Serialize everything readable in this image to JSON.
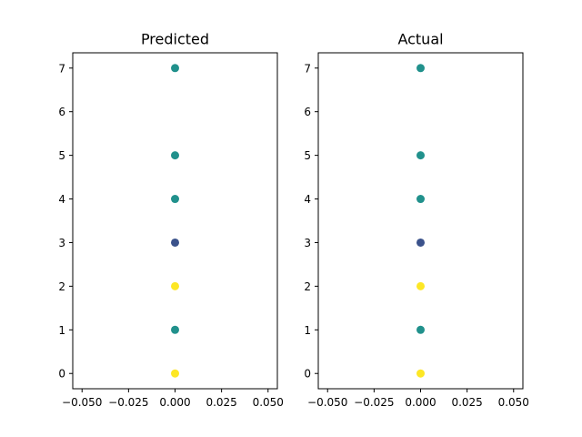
{
  "chart_data": [
    {
      "type": "scatter",
      "title": "Predicted",
      "xlabel": "",
      "ylabel": "",
      "xlim": [
        -0.055,
        0.055
      ],
      "ylim": [
        -0.35,
        7.35
      ],
      "xticks": [
        -0.05,
        -0.025,
        0.0,
        0.025,
        0.05
      ],
      "xtick_labels": [
        "−0.050",
        "−0.025",
        "0.000",
        "0.025",
        "0.050"
      ],
      "yticks": [
        0,
        1,
        2,
        3,
        4,
        5,
        6,
        7
      ],
      "ytick_labels": [
        "0",
        "1",
        "2",
        "3",
        "4",
        "5",
        "6",
        "7"
      ],
      "grid": false,
      "points": [
        {
          "x": 0.0,
          "y": 7,
          "color": "#21918c"
        },
        {
          "x": 0.0,
          "y": 5,
          "color": "#21918c"
        },
        {
          "x": 0.0,
          "y": 4,
          "color": "#21918c"
        },
        {
          "x": 0.0,
          "y": 3,
          "color": "#3b528b"
        },
        {
          "x": 0.0,
          "y": 2,
          "color": "#fde725"
        },
        {
          "x": 0.0,
          "y": 1,
          "color": "#21918c"
        },
        {
          "x": 0.0,
          "y": 0,
          "color": "#fde725"
        }
      ]
    },
    {
      "type": "scatter",
      "title": "Actual",
      "xlabel": "",
      "ylabel": "",
      "xlim": [
        -0.055,
        0.055
      ],
      "ylim": [
        -0.35,
        7.35
      ],
      "xticks": [
        -0.05,
        -0.025,
        0.0,
        0.025,
        0.05
      ],
      "xtick_labels": [
        "−0.050",
        "−0.025",
        "0.000",
        "0.025",
        "0.050"
      ],
      "yticks": [
        0,
        1,
        2,
        3,
        4,
        5,
        6,
        7
      ],
      "ytick_labels": [
        "0",
        "1",
        "2",
        "3",
        "4",
        "5",
        "6",
        "7"
      ],
      "grid": false,
      "points": [
        {
          "x": 0.0,
          "y": 7,
          "color": "#21918c"
        },
        {
          "x": 0.0,
          "y": 5,
          "color": "#21918c"
        },
        {
          "x": 0.0,
          "y": 4,
          "color": "#21918c"
        },
        {
          "x": 0.0,
          "y": 3,
          "color": "#3b528b"
        },
        {
          "x": 0.0,
          "y": 2,
          "color": "#fde725"
        },
        {
          "x": 0.0,
          "y": 1,
          "color": "#21918c"
        },
        {
          "x": 0.0,
          "y": 0,
          "color": "#fde725"
        }
      ]
    }
  ]
}
